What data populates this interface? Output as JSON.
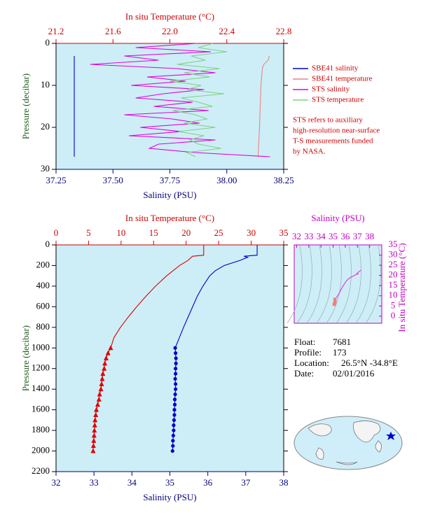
{
  "chart_data": [
    {
      "type": "line",
      "x_label": "Salinity (PSU)",
      "x2_label": "In situ Temperature (°C)",
      "y_label": "Pressure (decibar)",
      "xlim": [
        37.25,
        38.25
      ],
      "xticks": [
        37.25,
        {
          "value": 37.5,
          "label": "37.50"
        },
        37.75,
        {
          "value": 38,
          "label": "38.00"
        },
        38.25
      ],
      "x2lim": [
        21.2,
        22.8
      ],
      "x2ticks": [
        21.2,
        21.6,
        {
          "value": 22,
          "label": "22.0"
        },
        22.4,
        22.8
      ],
      "ylim": [
        0,
        30
      ],
      "yticks": [
        0,
        10,
        20,
        30
      ],
      "y_reversed": true,
      "background": "#cdeef7",
      "series": [
        {
          "name": "SBE41 salinity",
          "color": "#0000cc",
          "axis": "x",
          "pressure": [
            3,
            27
          ],
          "values": [
            37.33,
            37.33
          ]
        },
        {
          "name": "SBE41 temperature",
          "color": "#f08080",
          "axis": "x2",
          "pressure": [
            3,
            4,
            5,
            6,
            10,
            20,
            27
          ],
          "values": [
            22.7,
            22.69,
            22.66,
            22.65,
            22.64,
            22.63,
            22.62
          ]
        },
        {
          "name": "STS salinity",
          "color": "#e000e0",
          "axis": "x",
          "pressure": [
            0,
            1,
            2,
            3,
            4,
            5,
            6,
            7,
            8,
            9,
            10,
            11,
            12,
            13,
            14,
            15,
            16,
            17,
            18,
            19,
            20,
            21,
            22,
            23,
            24,
            25,
            26,
            27
          ],
          "values": [
            37.87,
            37.6,
            37.93,
            37.55,
            37.7,
            37.4,
            37.78,
            37.95,
            37.65,
            37.82,
            37.58,
            37.9,
            37.72,
            37.6,
            37.85,
            37.68,
            37.92,
            37.55,
            37.76,
            37.88,
            37.62,
            37.8,
            37.57,
            37.95,
            37.7,
            37.66,
            37.86,
            38.19
          ]
        },
        {
          "name": "STS temperature",
          "color": "#80d080",
          "axis": "x2",
          "pressure": [
            0,
            1,
            2,
            3,
            4,
            5,
            6,
            7,
            8,
            9,
            10,
            11,
            12,
            13,
            14,
            15,
            16,
            17,
            18,
            19,
            20,
            21,
            22,
            23,
            24,
            25,
            26,
            27
          ],
          "values": [
            22.3,
            22.2,
            22.4,
            22.15,
            22.25,
            22.05,
            22.35,
            22.1,
            22.28,
            22.0,
            22.22,
            22.12,
            22.38,
            22.08,
            22.2,
            22.3,
            22.02,
            22.18,
            22.26,
            22.1,
            22.32,
            22.06,
            22.24,
            22.14,
            22.2,
            22.36,
            22.12,
            22.18
          ]
        }
      ],
      "note": [
        "STS refers to auxiliary",
        "high-resolution near-surface",
        "T-S measurements funded",
        "by NASA."
      ]
    },
    {
      "type": "line",
      "x_label": "Salinity (PSU)",
      "x2_label": "In situ Temperature (°C)",
      "y_label": "Pressure (decibar)",
      "xlim": [
        32,
        38
      ],
      "xticks": [
        32,
        33,
        34,
        35,
        36,
        37,
        38
      ],
      "x2lim": [
        0,
        35
      ],
      "x2ticks": [
        0,
        5,
        10,
        15,
        20,
        25,
        30,
        35
      ],
      "ylim": [
        0,
        2200
      ],
      "yticks": [
        0,
        200,
        400,
        600,
        800,
        1000,
        1200,
        1400,
        1600,
        1800,
        2000,
        2200
      ],
      "y_reversed": true,
      "background": "#cdeef7",
      "series": [
        {
          "color": "#e00000",
          "axis": "x2",
          "pressure": [
            0,
            100,
            110,
            120,
            150,
            200,
            250,
            300,
            400,
            500,
            600,
            700,
            800,
            900,
            1000
          ],
          "values": [
            22.7,
            22.7,
            21.0,
            20.8,
            20.3,
            19.0,
            18.0,
            17.0,
            15.3,
            13.8,
            12.4,
            11.1,
            9.9,
            8.9,
            8.4
          ]
        },
        {
          "color": "#e00000",
          "axis": "x2",
          "marker": "triangle",
          "pressure": [
            1000,
            1050,
            1100,
            1150,
            1200,
            1250,
            1300,
            1350,
            1400,
            1450,
            1500,
            1550,
            1600,
            1650,
            1700,
            1750,
            1800,
            1850,
            1900,
            1950,
            2000
          ],
          "values": [
            8.4,
            8.0,
            7.7,
            7.5,
            7.4,
            7.2,
            7.1,
            7.0,
            6.9,
            6.7,
            6.6,
            6.4,
            6.2,
            6.1,
            6.0,
            5.95,
            5.9,
            5.85,
            5.8,
            5.75,
            5.7
          ]
        },
        {
          "color": "#0000cc",
          "axis": "x",
          "pressure": [
            0,
            100,
            110,
            120,
            150,
            200,
            250,
            300,
            400,
            500,
            600,
            700,
            800,
            900,
            1000
          ],
          "values": [
            37.3,
            37.3,
            36.95,
            37.05,
            36.85,
            36.43,
            36.2,
            36.05,
            35.87,
            35.72,
            35.6,
            35.48,
            35.36,
            35.25,
            35.14
          ]
        },
        {
          "color": "#0000cc",
          "axis": "x",
          "marker": "circle",
          "pressure": [
            1000,
            1050,
            1100,
            1150,
            1200,
            1250,
            1300,
            1350,
            1400,
            1450,
            1500,
            1550,
            1600,
            1650,
            1700,
            1750,
            1800,
            1850,
            1900,
            1950,
            2000
          ],
          "values": [
            35.14,
            35.15,
            35.16,
            35.16,
            35.15,
            35.15,
            35.14,
            35.15,
            35.15,
            35.14,
            35.13,
            35.13,
            35.12,
            35.12,
            35.11,
            35.1,
            35.1,
            35.09,
            35.08,
            35.08,
            35.07
          ]
        }
      ]
    },
    {
      "type": "ts",
      "x_label": "Salinity (PSU)",
      "y_label": "In situ Temperature (°C)",
      "color": "#e040e0",
      "xlim": [
        31.8,
        39
      ],
      "xticks": [
        32,
        33,
        34,
        35,
        36,
        37,
        38
      ],
      "ylim": [
        -3.5,
        35
      ],
      "yticks": [
        0,
        5,
        10,
        15,
        20,
        25,
        30,
        35
      ],
      "background": "#cdeef7"
    }
  ],
  "float_info": [
    [
      "Float:",
      "7681"
    ],
    [
      "Profile:",
      "173"
    ],
    [
      "Location:",
      "26.5°N  -34.8°E"
    ],
    [
      "Date:",
      "02/01/2016"
    ]
  ]
}
